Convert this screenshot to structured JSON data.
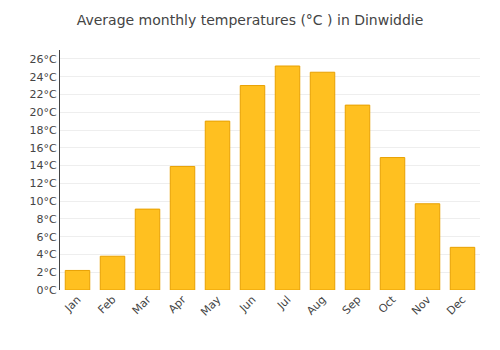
{
  "chart_data": {
    "type": "bar",
    "title": "Average monthly temperatures (°C ) in Dinwiddie",
    "categories": [
      "Jan",
      "Feb",
      "Mar",
      "Apr",
      "May",
      "Jun",
      "Jul",
      "Aug",
      "Sep",
      "Oct",
      "Nov",
      "Dec"
    ],
    "values": [
      2.2,
      3.8,
      9.1,
      13.9,
      19.0,
      23.0,
      25.2,
      24.5,
      20.8,
      14.9,
      9.7,
      4.8
    ],
    "color": "#FFC020",
    "ylim": [
      0,
      27
    ],
    "yticks": [
      {
        "value": 0,
        "label": "0°C"
      },
      {
        "value": 2,
        "label": "2°C"
      },
      {
        "value": 4,
        "label": "4°C"
      },
      {
        "value": 6,
        "label": "6°C"
      },
      {
        "value": 8,
        "label": "8°C"
      },
      {
        "value": 10,
        "label": "10°C"
      },
      {
        "value": 12,
        "label": "12°C"
      },
      {
        "value": 14,
        "label": "14°C"
      },
      {
        "value": 16,
        "label": "16°C"
      },
      {
        "value": 18,
        "label": "18°C"
      },
      {
        "value": 20,
        "label": "20°C"
      },
      {
        "value": 22,
        "label": "22°C"
      },
      {
        "value": 24,
        "label": "24°C"
      },
      {
        "value": 26,
        "label": "26°C"
      }
    ],
    "grid": true
  }
}
